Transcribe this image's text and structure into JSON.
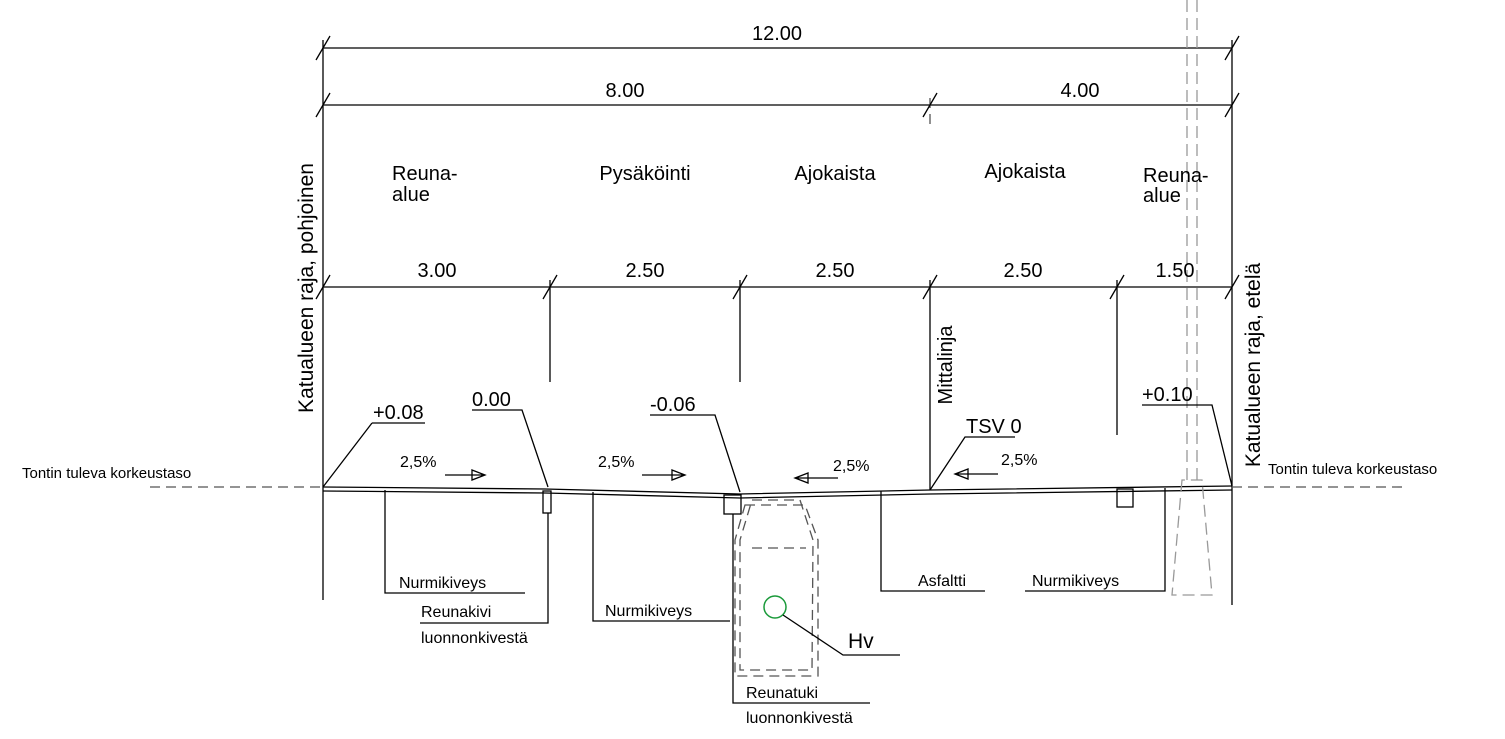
{
  "dimensions": {
    "overall": "12.00",
    "parts": [
      "8.00",
      "4.00"
    ],
    "lanes": [
      "3.00",
      "2.50",
      "2.50",
      "2.50",
      "1.50"
    ]
  },
  "zones": [
    [
      "Reuna-",
      "alue"
    ],
    [
      "Pysäköinti"
    ],
    [
      "Ajokaista"
    ],
    [
      "Ajokaista"
    ],
    [
      "Reuna-",
      "alue"
    ]
  ],
  "boundaries": {
    "north": "Katualueen raja, pohjoinen",
    "south": "Katualueen raja, etelä",
    "measure_line": "Mittalinja"
  },
  "levels": [
    "+0.08",
    "0.00",
    "-0.06",
    "TSV 0",
    "+0.10"
  ],
  "slopes": [
    "2,5%",
    "2,5%",
    "2,5%",
    "2,5%"
  ],
  "ground_level": [
    "Tontin tuleva korkeustaso",
    "Tontin tuleva korkeustaso"
  ],
  "materials": {
    "grass_pavers_left": "Nurmikiveys",
    "curb": [
      "Reunakivi",
      "luonnonkivestä"
    ],
    "grass_pavers_parking": "Nurmikiveys",
    "edge_support": [
      "Reunatuki",
      "luonnonkivestä"
    ],
    "asphalt": "Asfaltti",
    "grass_pavers_right": "Nurmikiveys",
    "hydrant": "Hv"
  }
}
